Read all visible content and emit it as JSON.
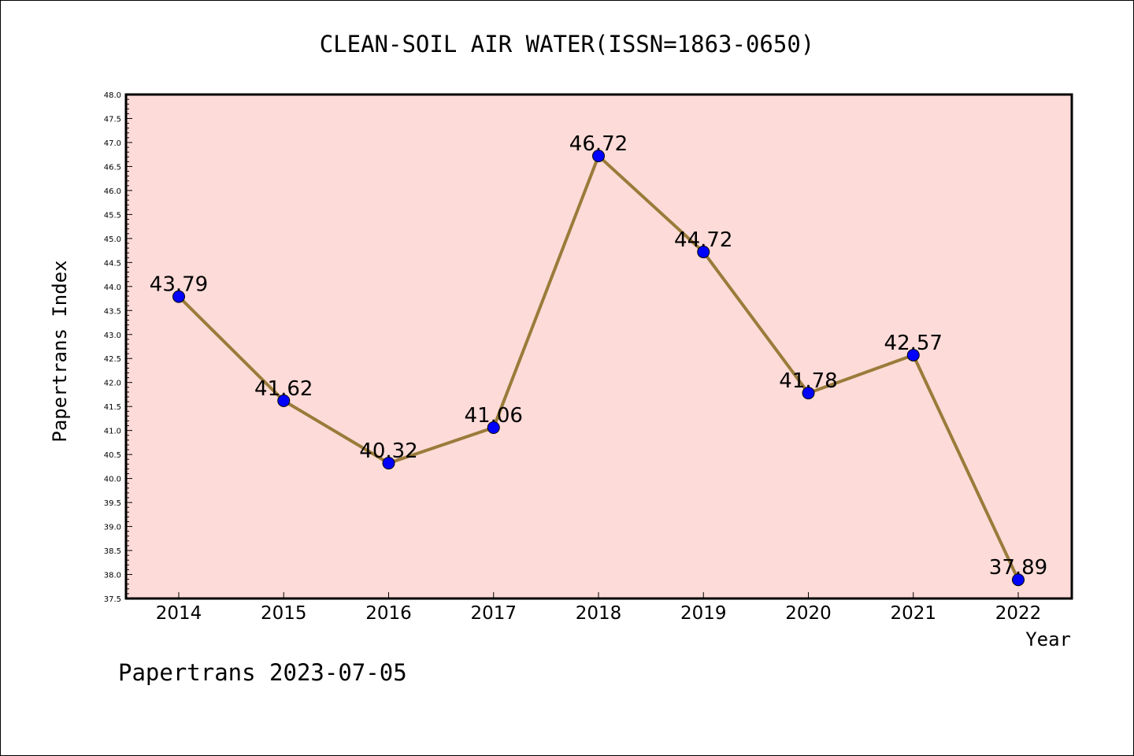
{
  "chart_data": {
    "type": "line",
    "title": "CLEAN-SOIL AIR WATER(ISSN=1863-0650)",
    "xlabel": "Year",
    "ylabel": "Papertrans Index",
    "categories": [
      "2014",
      "2015",
      "2016",
      "2017",
      "2018",
      "2019",
      "2020",
      "2021",
      "2022"
    ],
    "series": [
      {
        "values": [
          43.79,
          41.62,
          40.32,
          41.06,
          46.72,
          44.72,
          41.78,
          42.57,
          37.89
        ]
      }
    ],
    "data_labels": [
      "43.79",
      "41.62",
      "40.32",
      "41.06",
      "46.72",
      "44.72",
      "41.78",
      "42.57",
      "37.89"
    ],
    "ylim": [
      37.5,
      48.0
    ],
    "ytick_labels": [
      "37.5",
      "38.0",
      "38.5",
      "39.0",
      "39.5",
      "40.0",
      "40.5",
      "41.0",
      "41.5",
      "42.0",
      "42.5",
      "43.0",
      "43.5",
      "44.0",
      "44.5",
      "45.0",
      "45.5",
      "46.0",
      "46.5",
      "47.0",
      "47.5",
      "48.0"
    ],
    "grid": false,
    "legend": "none",
    "footer": "Papertrans 2023-07-05",
    "colors": {
      "plot_background": "#fddbd8",
      "line": "#9a7b3a",
      "marker": "#0000ff",
      "marker_edge": "#000000"
    }
  }
}
